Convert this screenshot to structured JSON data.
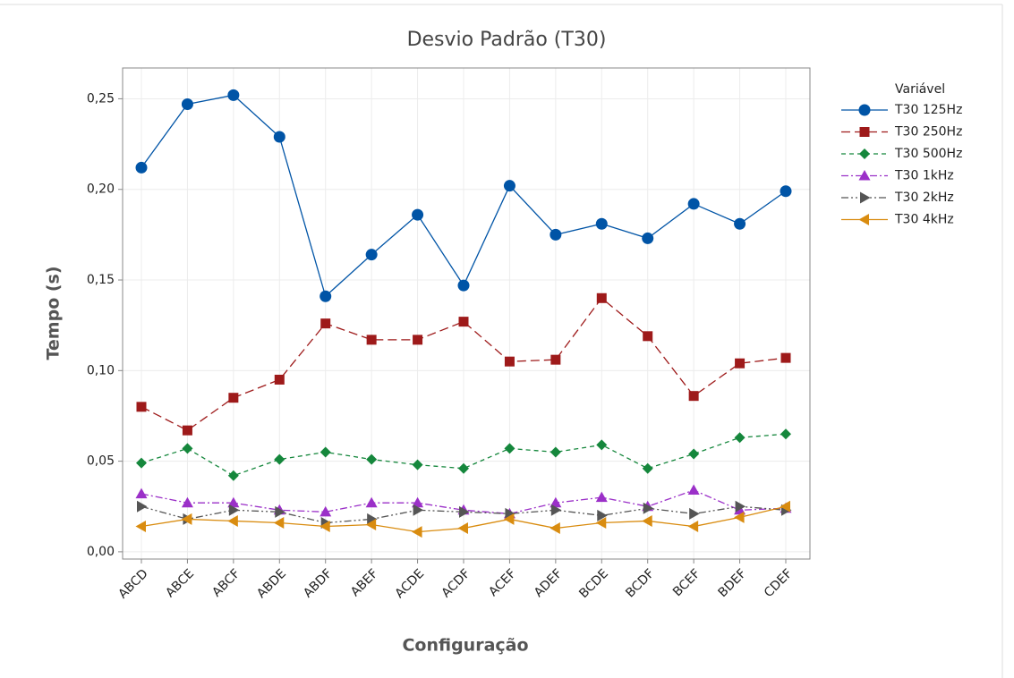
{
  "chart_data": {
    "type": "line",
    "title": "Desvio Padrão (T30)",
    "x_label": "Configuração",
    "y_label": "Tempo (s)",
    "legend_title": "Variável",
    "legend_position": "right",
    "grid": true,
    "categories": [
      "ABCD",
      "ABCE",
      "ABCF",
      "ABDE",
      "ABDF",
      "ABEF",
      "ACDE",
      "ACDF",
      "ACEF",
      "ADEF",
      "BCDE",
      "BCDF",
      "BCEF",
      "BDEF",
      "CDEF"
    ],
    "ylim": [
      -0.004,
      0.267
    ],
    "yticks": [
      {
        "value": 0,
        "label": "0,00"
      },
      {
        "value": 0.05,
        "label": "0,05"
      },
      {
        "value": 0.1,
        "label": "0,10"
      },
      {
        "value": 0.15,
        "label": "0,15"
      },
      {
        "value": 0.2,
        "label": "0,20"
      },
      {
        "value": 0.25,
        "label": "0,25"
      }
    ],
    "series": [
      {
        "name": "T30 125Hz",
        "color": "#0054a6",
        "marker": "circle",
        "dash": "solid",
        "values": [
          0.212,
          0.247,
          0.252,
          0.229,
          0.141,
          0.164,
          0.186,
          0.147,
          0.202,
          0.175,
          0.181,
          0.173,
          0.192,
          0.181,
          0.199
        ]
      },
      {
        "name": "T30 250Hz",
        "color": "#9e1a1a",
        "marker": "square",
        "dash": "longdash",
        "values": [
          0.08,
          0.067,
          0.085,
          0.095,
          0.126,
          0.117,
          0.117,
          0.127,
          0.105,
          0.106,
          0.14,
          0.119,
          0.086,
          0.104,
          0.107
        ]
      },
      {
        "name": "T30 500Hz",
        "color": "#15873c",
        "marker": "diamond",
        "dash": "dashed",
        "values": [
          0.049,
          0.057,
          0.042,
          0.051,
          0.055,
          0.051,
          0.048,
          0.046,
          0.057,
          0.055,
          0.059,
          0.046,
          0.054,
          0.063,
          0.065
        ]
      },
      {
        "name": "T30 1kHz",
        "color": "#9b30c8",
        "marker": "triangle-up",
        "dash": "dashdot",
        "values": [
          0.032,
          0.027,
          0.027,
          0.023,
          0.022,
          0.027,
          0.027,
          0.023,
          0.021,
          0.027,
          0.03,
          0.025,
          0.034,
          0.023,
          0.024
        ]
      },
      {
        "name": "T30 2kHz",
        "color": "#555555",
        "marker": "triangle-right",
        "dash": "dashdotdot",
        "values": [
          0.025,
          0.018,
          0.023,
          0.022,
          0.016,
          0.018,
          0.023,
          0.022,
          0.021,
          0.023,
          0.02,
          0.024,
          0.021,
          0.025,
          0.023
        ]
      },
      {
        "name": "T30 4kHz",
        "color": "#d98c10",
        "marker": "triangle-left",
        "dash": "solid",
        "values": [
          0.014,
          0.018,
          0.017,
          0.016,
          0.014,
          0.015,
          0.011,
          0.013,
          0.018,
          0.013,
          0.016,
          0.017,
          0.014,
          0.019,
          0.025
        ]
      }
    ]
  }
}
